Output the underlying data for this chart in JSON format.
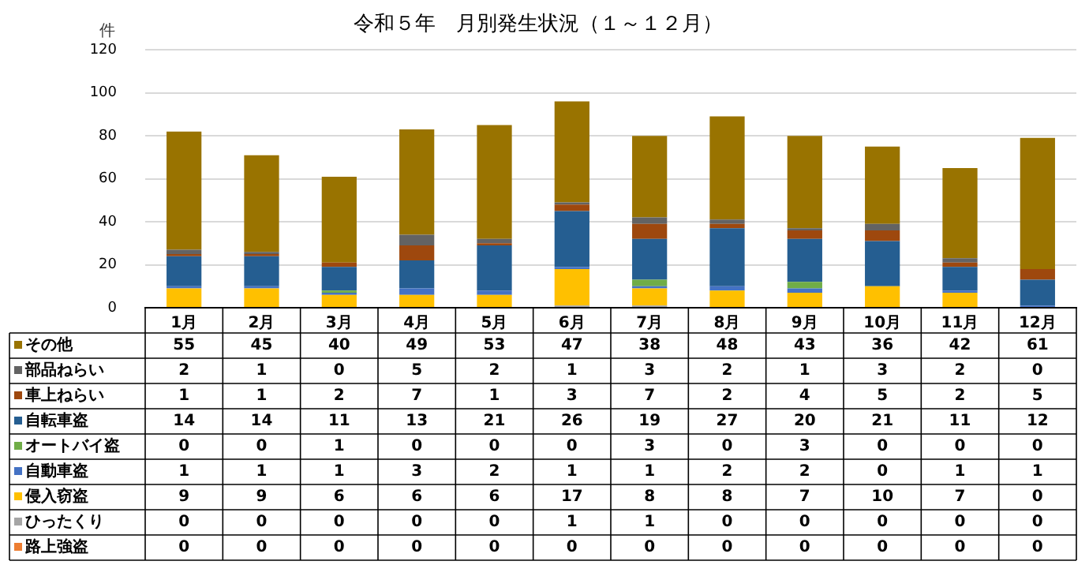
{
  "chart_data": {
    "type": "bar",
    "title": "令和５年　月別発生状況（１～１２月）",
    "ylabel": "件",
    "categories": [
      "1月",
      "2月",
      "3月",
      "4月",
      "5月",
      "6月",
      "7月",
      "8月",
      "9月",
      "10月",
      "11月",
      "12月"
    ],
    "stacked": true,
    "ylim": [
      0,
      120
    ],
    "yticks": [
      0,
      20,
      40,
      60,
      80,
      100,
      120
    ],
    "grid": "y",
    "legend": "left",
    "data_labels": true,
    "series": [
      {
        "name": "路上強盗",
        "color": "#ed7d31",
        "values": [
          0,
          0,
          0,
          0,
          0,
          0,
          0,
          0,
          0,
          0,
          0,
          0
        ]
      },
      {
        "name": "ひったくり",
        "color": "#a5a5a5",
        "values": [
          0,
          0,
          0,
          0,
          0,
          1,
          1,
          0,
          0,
          0,
          0,
          0
        ]
      },
      {
        "name": "侵入窃盗",
        "color": "#ffc000",
        "values": [
          9,
          9,
          6,
          6,
          6,
          17,
          8,
          8,
          7,
          10,
          7,
          0
        ]
      },
      {
        "name": "自動車盗",
        "color": "#4472c4",
        "values": [
          1,
          1,
          1,
          3,
          2,
          1,
          1,
          2,
          2,
          0,
          1,
          1
        ]
      },
      {
        "name": "オートバイ盗",
        "color": "#70ad47",
        "values": [
          0,
          0,
          1,
          0,
          0,
          0,
          3,
          0,
          3,
          0,
          0,
          0
        ]
      },
      {
        "name": "自転車盗",
        "color": "#255e91",
        "values": [
          14,
          14,
          11,
          13,
          21,
          26,
          19,
          27,
          20,
          21,
          11,
          12
        ]
      },
      {
        "name": "車上ねらい",
        "color": "#9e480e",
        "values": [
          1,
          1,
          2,
          7,
          1,
          3,
          7,
          2,
          4,
          5,
          2,
          5
        ]
      },
      {
        "name": "部品ねらい",
        "color": "#636363",
        "values": [
          2,
          1,
          0,
          5,
          2,
          1,
          3,
          2,
          1,
          3,
          2,
          0
        ]
      },
      {
        "name": "その他",
        "color": "#997300",
        "values": [
          55,
          45,
          40,
          49,
          53,
          47,
          38,
          48,
          43,
          36,
          42,
          61
        ]
      }
    ]
  }
}
